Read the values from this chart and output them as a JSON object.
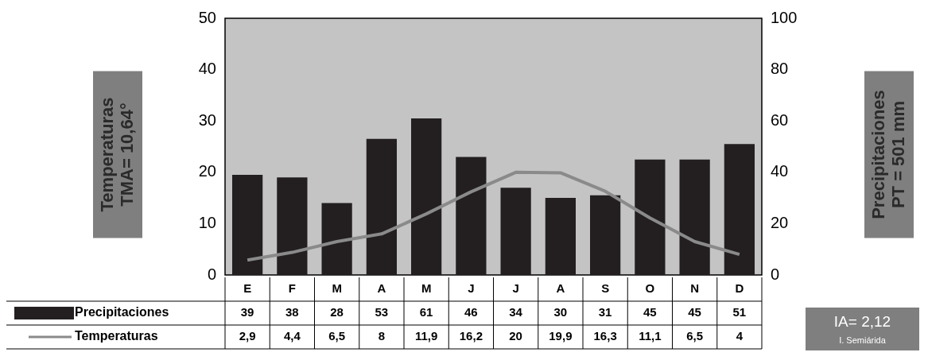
{
  "chart_data": {
    "type": "bar",
    "categories": [
      "E",
      "F",
      "M",
      "A",
      "M",
      "J",
      "J",
      "A",
      "S",
      "O",
      "N",
      "D"
    ],
    "series": [
      {
        "name": "Precipitaciones",
        "axis": "y2",
        "color": "#231f20",
        "values": [
          39,
          38,
          28,
          53,
          61,
          46,
          34,
          30,
          31,
          45,
          45,
          51
        ],
        "value_labels": [
          "39",
          "38",
          "28",
          "53",
          "61",
          "46",
          "34",
          "30",
          "31",
          "45",
          "45",
          "51"
        ]
      },
      {
        "name": "Temperaturas",
        "type": "line",
        "axis": "y",
        "color": "#8a8a8a",
        "values": [
          2.9,
          4.4,
          6.5,
          8,
          11.9,
          16.2,
          20,
          19.9,
          16.3,
          11.1,
          6.5,
          4
        ],
        "value_labels": [
          "2,9",
          "4,4",
          "6,5",
          "8",
          "11,9",
          "16,2",
          "20",
          "19,9",
          "16,3",
          "11,1",
          "6,5",
          "4"
        ]
      }
    ],
    "ylabel": "Temperaturas\nTMA= 10,64°",
    "y2label": "Precipitaciones\nPT = 501 mm",
    "ylim": [
      0,
      50
    ],
    "yticks": [
      0,
      10,
      20,
      30,
      40,
      50
    ],
    "y2lim": [
      0,
      100
    ],
    "y2ticks": [
      0,
      20,
      40,
      60,
      80,
      100
    ],
    "legend": "bottom",
    "marker": "none",
    "annotations": [
      "IA= 2,12",
      "I. Semiárida"
    ]
  }
}
